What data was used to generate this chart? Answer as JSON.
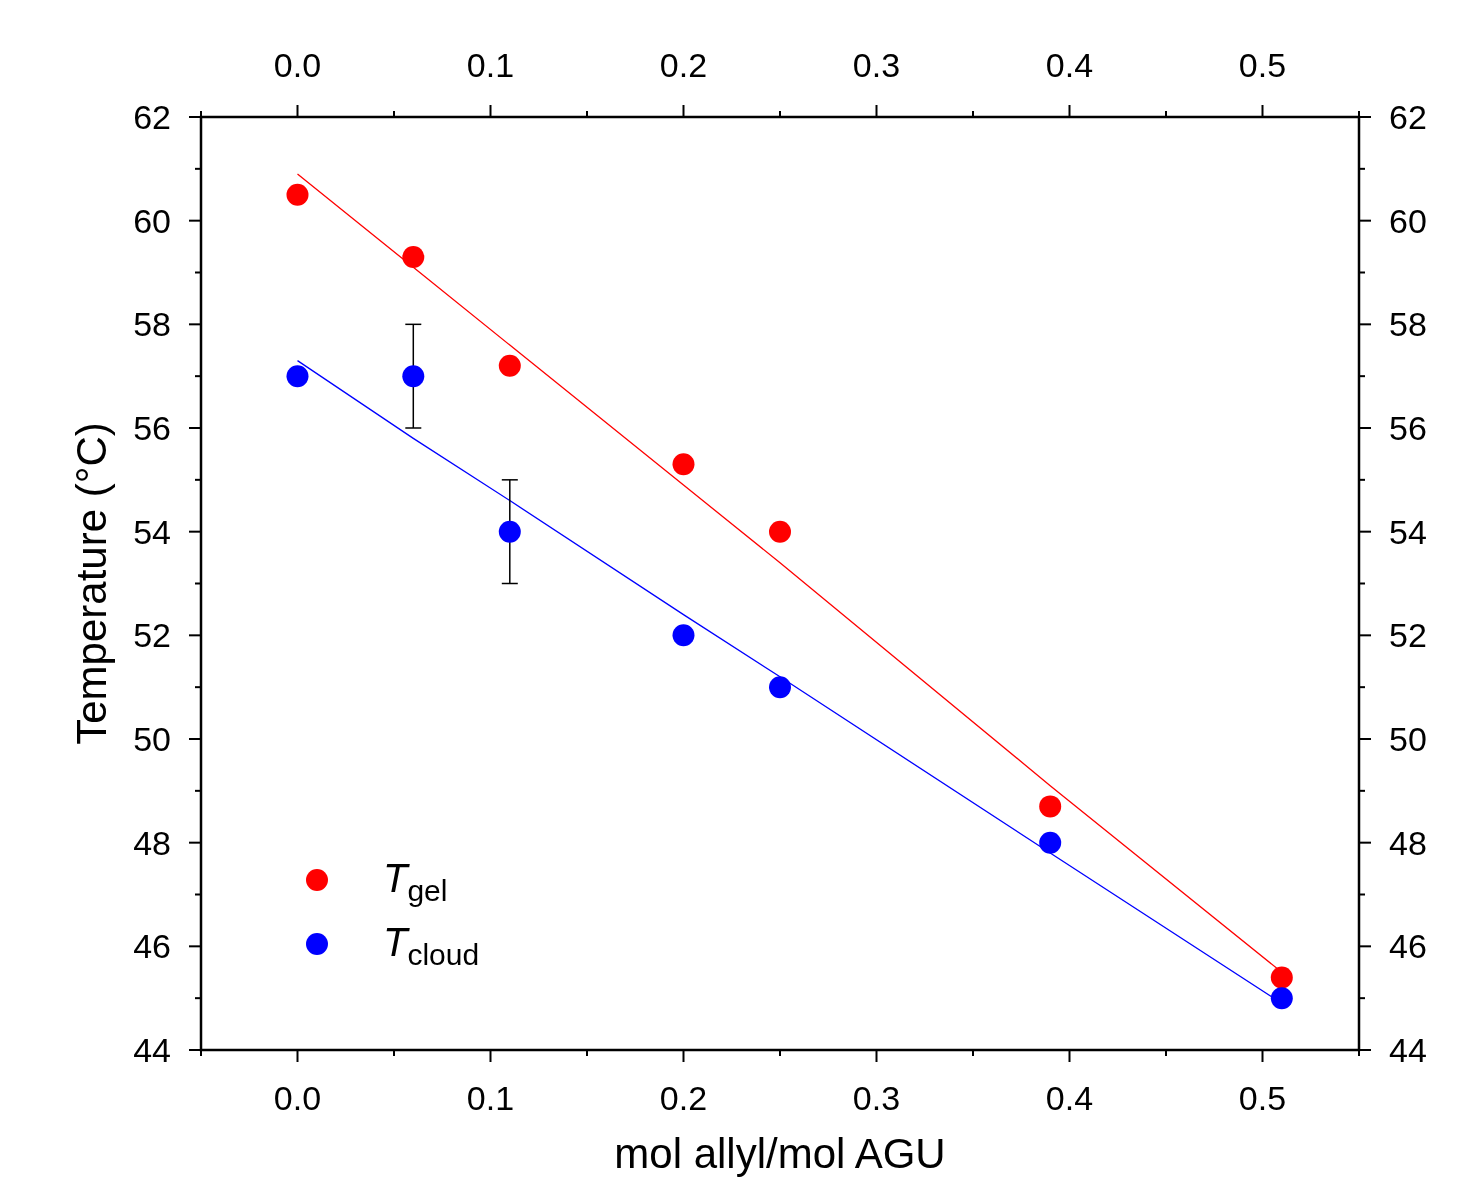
{
  "chart_data": {
    "type": "scatter",
    "xlabel": "mol allyl/mol AGU",
    "ylabel": "Temperature (°C)",
    "xlim": [
      -0.05,
      0.55
    ],
    "xticks": [
      {
        "value": -0.05,
        "label": null
      },
      {
        "value": 0,
        "label": "0.0"
      },
      {
        "value": 0.05,
        "label": null
      },
      0.1,
      {
        "value": 0.15,
        "label": null
      },
      0.2,
      {
        "value": 0.25,
        "label": null
      },
      0.3,
      {
        "value": 0.35,
        "label": null
      },
      0.4,
      {
        "value": 0.45,
        "label": null
      },
      0.5,
      {
        "value": 0.55,
        "label": null
      }
    ],
    "x2lim": [
      -0.05,
      0.55
    ],
    "x2ticks": [
      {
        "value": -0.05,
        "label": null
      },
      {
        "value": 0,
        "label": "0.0"
      },
      {
        "value": 0.05,
        "label": null
      },
      0.1,
      {
        "value": 0.15,
        "label": null
      },
      0.2,
      {
        "value": 0.25,
        "label": null
      },
      0.3,
      {
        "value": 0.35,
        "label": null
      },
      0.4,
      {
        "value": 0.45,
        "label": null
      },
      0.5,
      {
        "value": 0.55,
        "label": null
      }
    ],
    "ylim": [
      44,
      62
    ],
    "yticks": [
      44,
      {
        "value": 45,
        "label": null
      },
      46,
      {
        "value": 47,
        "label": null
      },
      48,
      {
        "value": 49,
        "label": null
      },
      50,
      {
        "value": 51,
        "label": null
      },
      52,
      {
        "value": 53,
        "label": null
      },
      54,
      {
        "value": 55,
        "label": null
      },
      56,
      {
        "value": 57,
        "label": null
      },
      58,
      {
        "value": 59,
        "label": null
      },
      60,
      {
        "value": 61,
        "label": null
      },
      62
    ],
    "y2lim": [
      44,
      62
    ],
    "y2ticks": [
      44,
      {
        "value": 45,
        "label": null
      },
      46,
      {
        "value": 47,
        "label": null
      },
      48,
      {
        "value": 49,
        "label": null
      },
      50,
      {
        "value": 51,
        "label": null
      },
      52,
      {
        "value": 53,
        "label": null
      },
      54,
      {
        "value": 55,
        "label": null
      },
      56,
      {
        "value": 57,
        "label": null
      },
      58,
      {
        "value": 59,
        "label": null
      },
      60,
      {
        "value": 61,
        "label": null
      },
      62
    ],
    "x": [
      0,
      0.06,
      0.11,
      0.2,
      0.25,
      0.39,
      0.51
    ],
    "marker": "circle",
    "legend": "bottom left",
    "grid": false,
    "series": [
      {
        "name": "T$_{gel}$",
        "color": "#ff0000",
        "values": [
          60.5,
          59.3,
          57.2,
          55.3,
          54.0,
          48.7,
          45.4
        ]
      },
      {
        "name": "T$_{cloud}$",
        "color": "#0000ff",
        "values": [
          57,
          57,
          54,
          52,
          51,
          48,
          45
        ],
        "errors": [
          null,
          1,
          1,
          null,
          null,
          null,
          null
        ]
      },
      {
        "type": "line",
        "color": "#ff0000",
        "values": [
          60.9,
          59.1,
          57.6,
          54.9,
          53.4,
          49.1,
          45.5
        ],
        "marker": "none",
        "line_style": "solid"
      },
      {
        "type": "line",
        "color": "#0000ff",
        "values": [
          57.3,
          55.8,
          54.6,
          52.4,
          51.2,
          47.8,
          44.9
        ],
        "marker": "none",
        "line_style": "solid"
      }
    ]
  }
}
